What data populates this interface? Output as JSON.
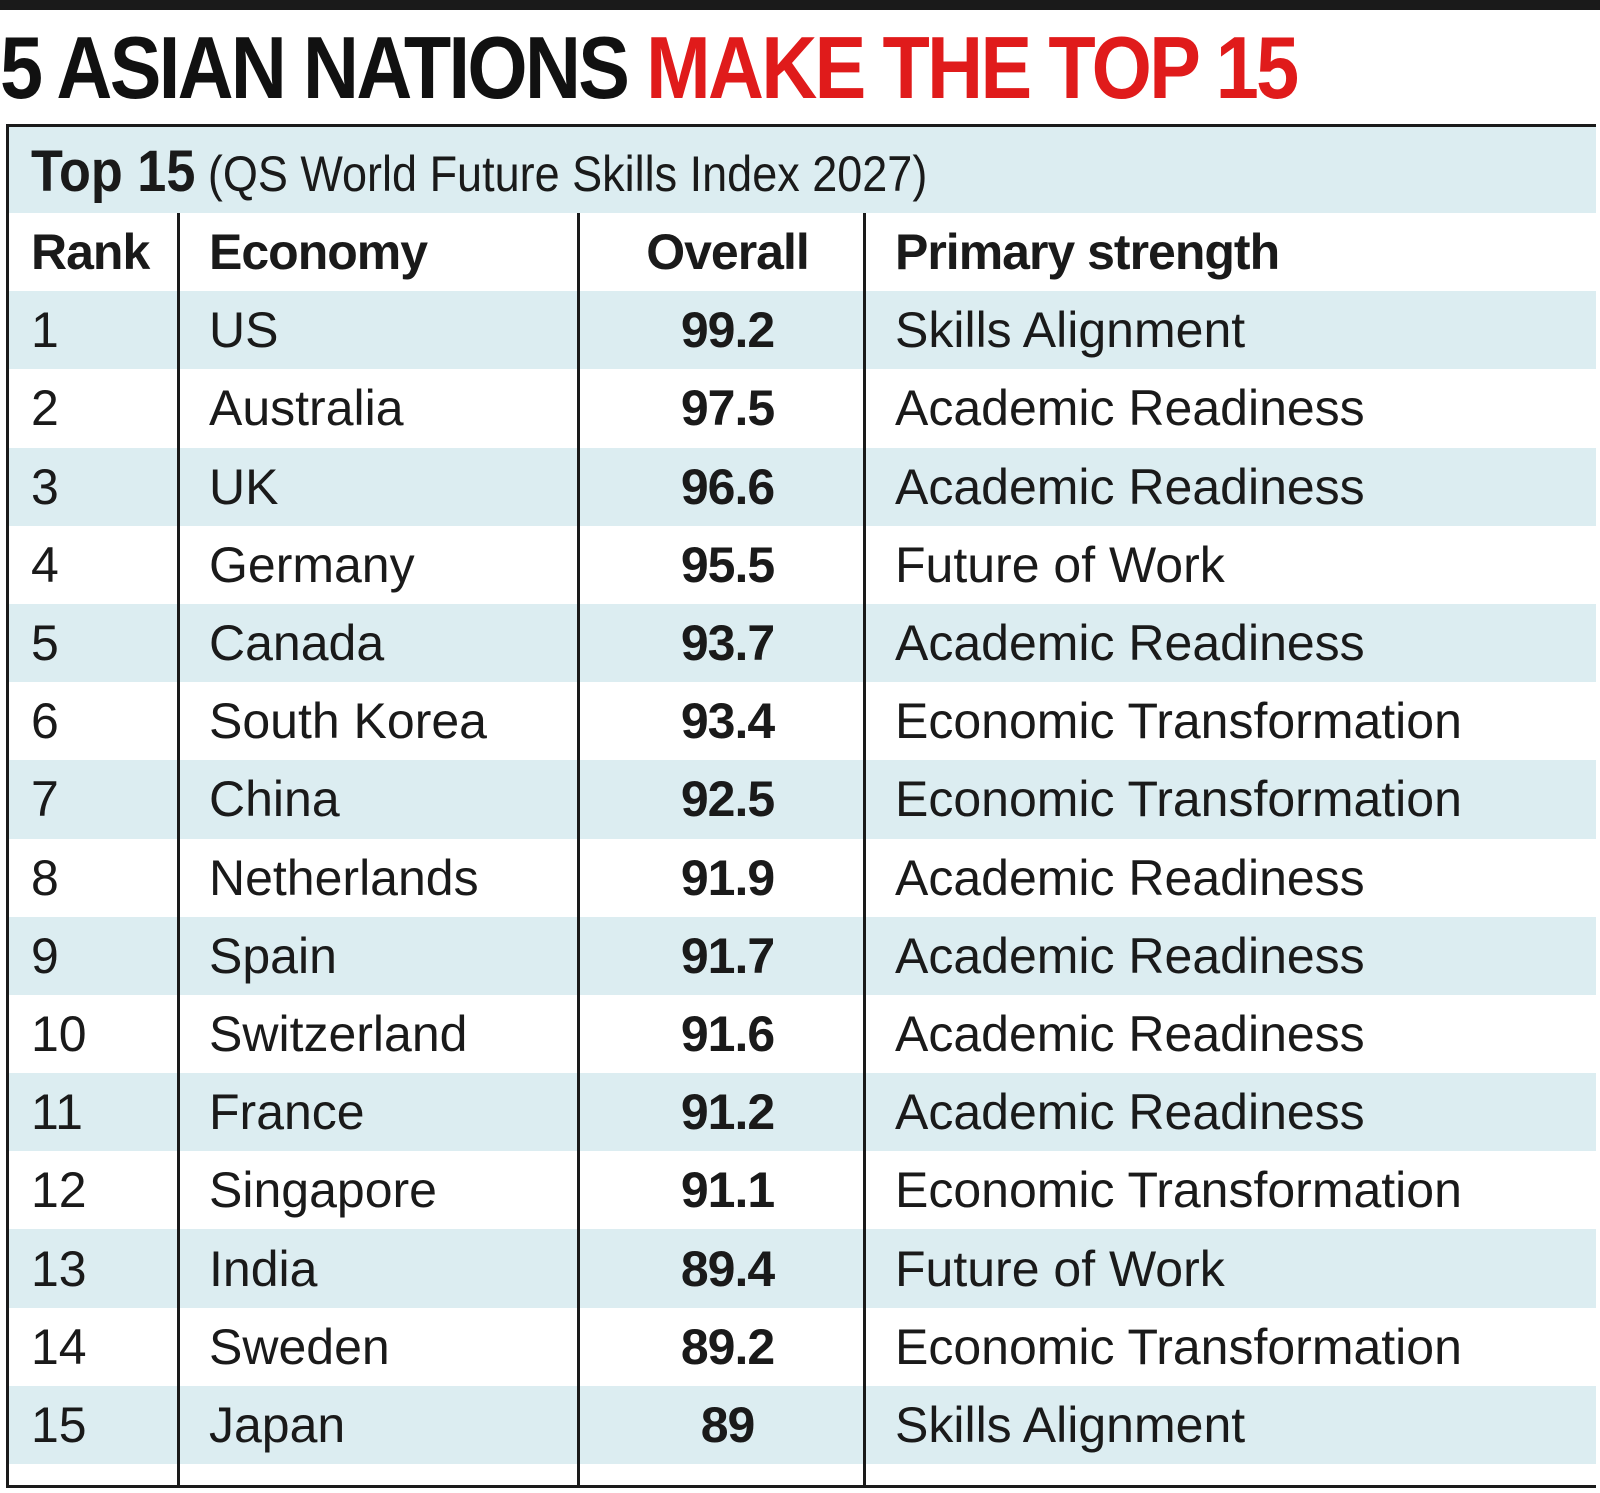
{
  "headline": {
    "black_part": "5 ASIAN NATIONS ",
    "red_part": "MAKE THE TOP 15"
  },
  "colors": {
    "accent_red": "#e01b1b",
    "row_shade": "#dcedf1",
    "text": "#1a1a1a"
  },
  "table": {
    "subtitle_bold": "Top 15",
    "subtitle_normal": "(QS World Future Skills Index 2027)",
    "headers": {
      "rank": "Rank",
      "economy": "Economy",
      "overall": "Overall",
      "strength": "Primary strength"
    },
    "rows": [
      {
        "rank": "1",
        "economy": "US",
        "overall": "99.2",
        "strength": "Skills Alignment"
      },
      {
        "rank": "2",
        "economy": "Australia",
        "overall": "97.5",
        "strength": "Academic Readiness"
      },
      {
        "rank": "3",
        "economy": "UK",
        "overall": "96.6",
        "strength": "Academic Readiness"
      },
      {
        "rank": "4",
        "economy": "Germany",
        "overall": "95.5",
        "strength": "Future of Work"
      },
      {
        "rank": "5",
        "economy": "Canada",
        "overall": "93.7",
        "strength": "Academic Readiness"
      },
      {
        "rank": "6",
        "economy": "South Korea",
        "overall": "93.4",
        "strength": "Economic Transformation"
      },
      {
        "rank": "7",
        "economy": "China",
        "overall": "92.5",
        "strength": "Economic Transformation"
      },
      {
        "rank": "8",
        "economy": "Netherlands",
        "overall": "91.9",
        "strength": "Academic Readiness"
      },
      {
        "rank": "9",
        "economy": "Spain",
        "overall": "91.7",
        "strength": "Academic Readiness"
      },
      {
        "rank": "10",
        "economy": "Switzerland",
        "overall": "91.6",
        "strength": "Academic Readiness"
      },
      {
        "rank": "11",
        "economy": "France",
        "overall": "91.2",
        "strength": "Academic Readiness"
      },
      {
        "rank": "12",
        "economy": "Singapore",
        "overall": "91.1",
        "strength": "Economic Transformation"
      },
      {
        "rank": "13",
        "economy": "India",
        "overall": "89.4",
        "strength": "Future of Work"
      },
      {
        "rank": "14",
        "economy": "Sweden",
        "overall": "89.2",
        "strength": "Economic Transformation"
      },
      {
        "rank": "15",
        "economy": "Japan",
        "overall": "89",
        "strength": "Skills Alignment"
      }
    ]
  },
  "chart_data": {
    "type": "table",
    "columns": [
      "Rank",
      "Economy",
      "Overall",
      "Primary strength"
    ],
    "rows": [
      [
        1,
        "US",
        99.2,
        "Skills Alignment"
      ],
      [
        2,
        "Australia",
        97.5,
        "Academic Readiness"
      ],
      [
        3,
        "UK",
        96.6,
        "Academic Readiness"
      ],
      [
        4,
        "Germany",
        95.5,
        "Future of Work"
      ],
      [
        5,
        "Canada",
        93.7,
        "Academic Readiness"
      ],
      [
        6,
        "South Korea",
        93.4,
        "Economic Transformation"
      ],
      [
        7,
        "China",
        92.5,
        "Economic Transformation"
      ],
      [
        8,
        "Netherlands",
        91.9,
        "Academic Readiness"
      ],
      [
        9,
        "Spain",
        91.7,
        "Academic Readiness"
      ],
      [
        10,
        "Switzerland",
        91.6,
        "Academic Readiness"
      ],
      [
        11,
        "France",
        91.2,
        "Academic Readiness"
      ],
      [
        12,
        "Singapore",
        91.1,
        "Economic Transformation"
      ],
      [
        13,
        "India",
        89.4,
        "Future of Work"
      ],
      [
        14,
        "Sweden",
        89.2,
        "Economic Transformation"
      ],
      [
        15,
        "Japan",
        89,
        "Skills Alignment"
      ]
    ]
  }
}
